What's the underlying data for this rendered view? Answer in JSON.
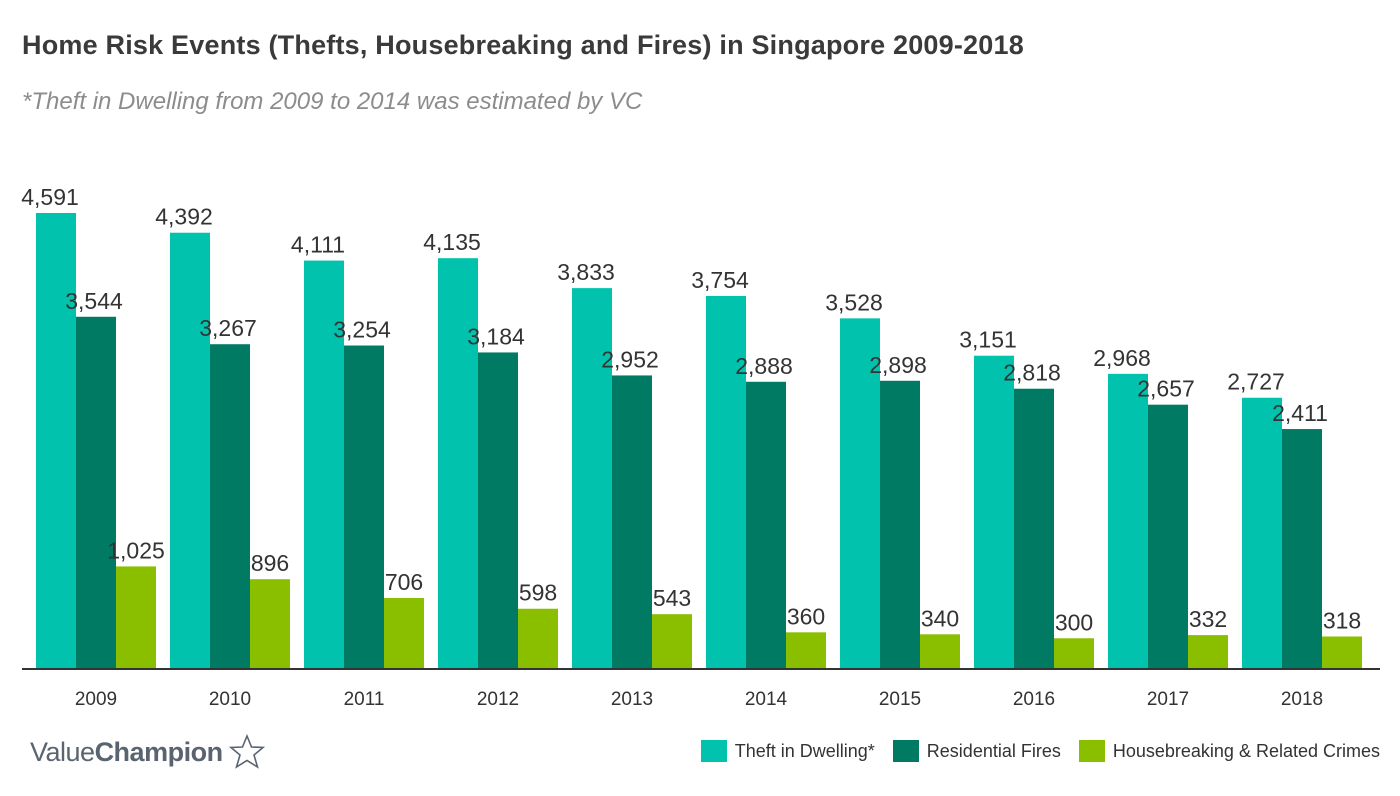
{
  "chart_data": {
    "type": "bar",
    "title": "Home Risk Events (Thefts, Housebreaking and Fires) in Singapore 2009-2018",
    "subtitle": "*Theft in Dwelling from 2009 to 2014 was estimated by VC",
    "categories": [
      "2009",
      "2010",
      "2011",
      "2012",
      "2013",
      "2014",
      "2015",
      "2016",
      "2017",
      "2018"
    ],
    "series": [
      {
        "name": "Theft in Dwelling*",
        "color": "#00c2ad",
        "values": [
          4591,
          4392,
          4111,
          4135,
          3833,
          3754,
          3528,
          3151,
          2968,
          2727
        ]
      },
      {
        "name": "Residential Fires",
        "color": "#007a63",
        "values": [
          3544,
          3267,
          3254,
          3184,
          2952,
          2888,
          2898,
          2818,
          2657,
          2411
        ]
      },
      {
        "name": "Housebreaking & Related Crimes",
        "color": "#8abf00",
        "values": [
          1025,
          896,
          706,
          598,
          543,
          360,
          340,
          300,
          332,
          318
        ]
      }
    ],
    "data_labels": [
      [
        "4,591",
        "4,392",
        "4,111",
        "4,135",
        "3,833",
        "3,754",
        "3,528",
        "3,151",
        "2,968",
        "2,727"
      ],
      [
        "3,544",
        "3,267",
        "3,254",
        "3,184",
        "2,952",
        "2,888",
        "2,898",
        "2,818",
        "2,657",
        "2,411"
      ],
      [
        "1,025",
        "896",
        "706",
        "598",
        "543",
        "360",
        "340",
        "300",
        "332",
        "318"
      ]
    ],
    "xlabel": "",
    "ylabel": "",
    "ylim": [
      0,
      4591
    ],
    "grid": false,
    "legend_position": "bottom-right"
  },
  "brand": {
    "name_light": "Value",
    "name_bold": "Champion"
  },
  "icons": {
    "brand": "star-outline-icon"
  }
}
